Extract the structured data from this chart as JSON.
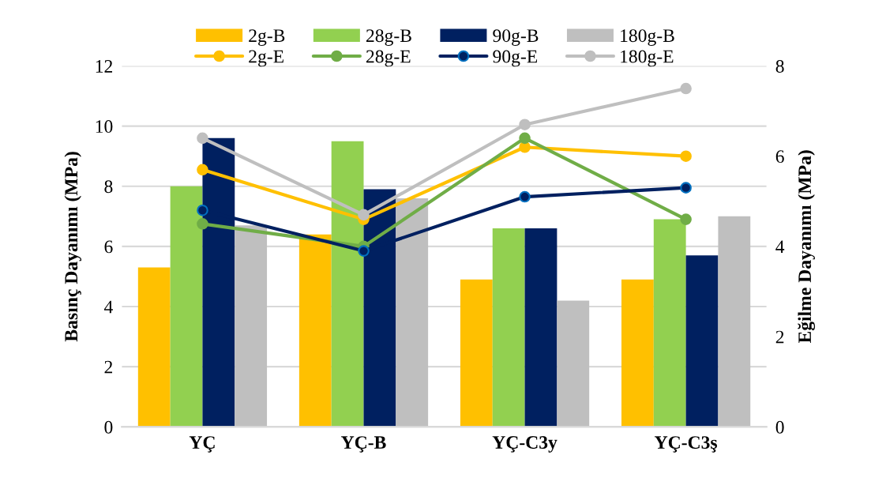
{
  "chart_data": {
    "type": "bar",
    "ylabel": "Basınç Dayanımı (MPa)",
    "y2label": "Eğilme Dayanımı (MPa)",
    "categories": [
      "YÇ",
      "YÇ-B",
      "YÇ-C3y",
      "YÇ-C3ş"
    ],
    "series": [
      {
        "name": "2g-B",
        "color": "#ffc000",
        "values": [
          5.3,
          6.4,
          4.9,
          4.9
        ]
      },
      {
        "name": "28g-B",
        "color": "#92d050",
        "values": [
          8.0,
          9.5,
          6.6,
          6.9
        ]
      },
      {
        "name": "90g-B",
        "color": "#002060",
        "values": [
          9.6,
          7.9,
          6.6,
          5.7
        ]
      },
      {
        "name": "180g-B",
        "color": "#bfbfbf",
        "values": [
          6.7,
          7.6,
          4.2,
          7.0
        ]
      },
      {
        "name": "2g-E",
        "type": "line",
        "axis": "y2",
        "color": "#ffc000",
        "values": [
          5.7,
          4.6,
          6.2,
          6.0
        ]
      },
      {
        "name": "28g-E",
        "type": "line",
        "axis": "y2",
        "color": "#70ad47",
        "values": [
          4.5,
          4.0,
          6.4,
          4.6
        ]
      },
      {
        "name": "90g-E",
        "type": "line",
        "axis": "y2",
        "color": "#002060",
        "values": [
          4.8,
          3.9,
          5.1,
          5.3
        ]
      },
      {
        "name": "180g-E",
        "type": "line",
        "axis": "y2",
        "color": "#bfbfbf",
        "values": [
          6.4,
          4.7,
          6.7,
          7.5
        ]
      }
    ],
    "ylim": [
      0,
      12
    ],
    "yticks": [
      0,
      2,
      4,
      6,
      8,
      10,
      12
    ],
    "y2lim": [
      0,
      8
    ],
    "y2ticks": [
      0,
      2,
      4,
      6,
      8
    ],
    "grid": "y",
    "legend": "top",
    "marker": "circle",
    "line_style": "solid"
  }
}
